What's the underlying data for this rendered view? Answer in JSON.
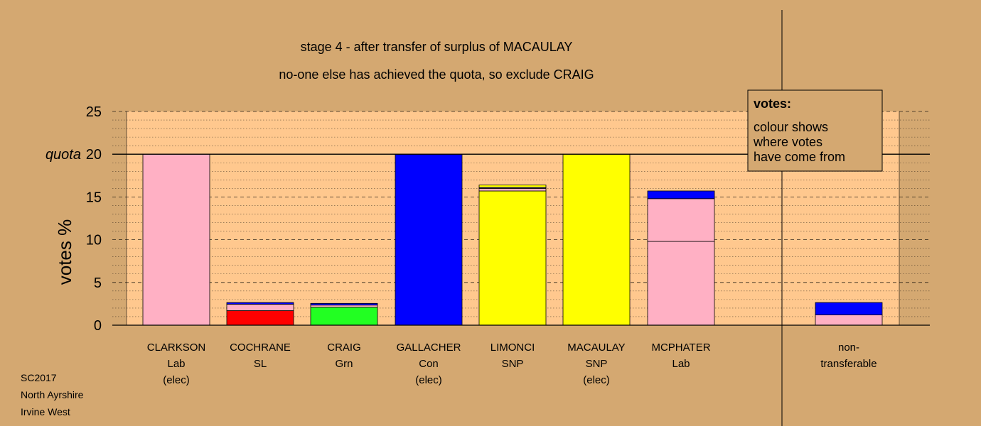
{
  "chart_data": {
    "type": "bar",
    "stacked": true,
    "title": "stage 4 - after transfer of surplus of MACAULAY",
    "subtitle": "no-one else has achieved the quota, so exclude CRAIG",
    "ylabel": "votes %",
    "ylim": [
      0,
      25
    ],
    "yticks": [
      "0",
      "5",
      "10",
      "15",
      "20",
      "25"
    ],
    "quota": {
      "label": "quota",
      "value": 20
    },
    "colors": {
      "Lab": "#ffb0c4",
      "SL": "#ff0000",
      "Grn": "#22ff22",
      "Con": "#0000ff",
      "SNP": "#ffff00",
      "NT": "#ffb0c4",
      "line": "#000000",
      "plot_bg": "#ffc88e",
      "page_bg": "#d4a871"
    },
    "categories": [
      {
        "name": "CLARKSON",
        "lines": [
          "CLARKSON",
          "Lab",
          "(elec)"
        ],
        "segments": [
          {
            "source": "Lab",
            "value": 20.0
          }
        ]
      },
      {
        "name": "COCHRANE",
        "lines": [
          "COCHRANE",
          "SL"
        ],
        "segments": [
          {
            "source": "SL",
            "value": 1.7
          },
          {
            "source": "Lab",
            "value": 0.75
          },
          {
            "source": "Con",
            "value": 0.2
          }
        ]
      },
      {
        "name": "CRAIG",
        "lines": [
          "CRAIG",
          "Grn"
        ],
        "segments": [
          {
            "source": "Grn",
            "value": 2.1
          },
          {
            "source": "Lab",
            "value": 0.25
          },
          {
            "source": "Con",
            "value": 0.2
          }
        ]
      },
      {
        "name": "GALLACHER",
        "lines": [
          "GALLACHER",
          "Con",
          "(elec)"
        ],
        "segments": [
          {
            "source": "Con",
            "value": 20.0
          }
        ]
      },
      {
        "name": "LIMONCI",
        "lines": [
          "LIMONCI",
          "SNP"
        ],
        "segments": [
          {
            "source": "SNP",
            "value": 15.7
          },
          {
            "source": "Lab",
            "value": 0.3
          },
          {
            "source": "Con",
            "value": 0.1
          },
          {
            "source": "SNP",
            "value": 0.3
          }
        ]
      },
      {
        "name": "MACAULAY",
        "lines": [
          "MACAULAY",
          "SNP",
          "(elec)"
        ],
        "segments": [
          {
            "source": "SNP",
            "value": 20.0
          }
        ]
      },
      {
        "name": "MCPHATER",
        "lines": [
          "MCPHATER",
          "Lab"
        ],
        "segments": [
          {
            "source": "Lab",
            "value": 9.8
          },
          {
            "source": "Lab",
            "value": 5.0
          },
          {
            "source": "Con",
            "value": 0.9
          }
        ]
      },
      {
        "name": "non-transferable",
        "lines": [
          "non-",
          "transferable"
        ],
        "segments": [
          {
            "source": "NT",
            "value": 1.2
          },
          {
            "source": "Con",
            "value": 1.45
          }
        ]
      }
    ],
    "legend": {
      "title": "votes:",
      "lines": [
        "colour shows",
        "where votes",
        "have come from"
      ],
      "placement": "top-right"
    },
    "grid": true
  },
  "footer": {
    "lines": [
      "SC2017",
      "North Ayrshire",
      "Irvine West"
    ]
  }
}
